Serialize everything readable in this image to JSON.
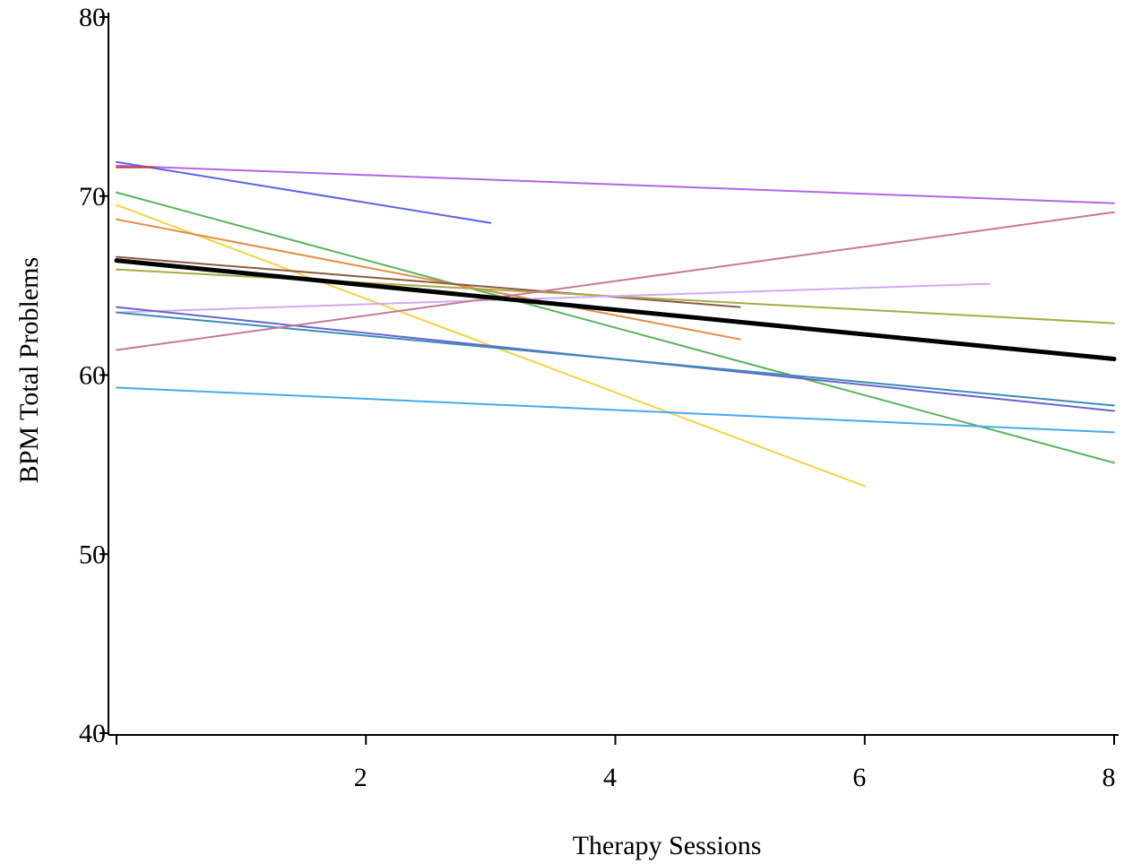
{
  "chart_data": {
    "type": "line",
    "xlabel": "Therapy Sessions",
    "ylabel": "BPM Total Problems",
    "xlim": [
      0,
      8
    ],
    "ylim": [
      40,
      80
    ],
    "xticks": [
      2,
      4,
      6,
      8
    ],
    "yticks": [
      40,
      50,
      60,
      70,
      80
    ],
    "grid": false,
    "series": [
      {
        "color": "#b464e6",
        "x": [
          0,
          8
        ],
        "y": [
          71.7,
          69.6
        ]
      },
      {
        "color": "#5a64e6",
        "x": [
          0,
          3
        ],
        "y": [
          71.9,
          68.5
        ]
      },
      {
        "color": "#d03a3a",
        "x": [
          0,
          0.3
        ],
        "y": [
          71.6,
          71.6
        ]
      },
      {
        "color": "#5ab45a",
        "x": [
          0,
          8
        ],
        "y": [
          70.2,
          55.1
        ]
      },
      {
        "color": "#f5d246",
        "x": [
          0,
          6
        ],
        "y": [
          69.5,
          53.8
        ]
      },
      {
        "color": "#e68c46",
        "x": [
          0,
          5
        ],
        "y": [
          68.7,
          62.0
        ]
      },
      {
        "color": "#8c5a46",
        "x": [
          0,
          5
        ],
        "y": [
          66.6,
          63.8
        ]
      },
      {
        "color": "#aaaa46",
        "x": [
          0,
          8
        ],
        "y": [
          65.9,
          62.9
        ]
      },
      {
        "color": "#d2aaf5",
        "x": [
          0,
          7
        ],
        "y": [
          63.5,
          65.1
        ]
      },
      {
        "color": "#6464d2",
        "x": [
          0,
          8
        ],
        "y": [
          63.8,
          58.0
        ]
      },
      {
        "color": "#3c8cb4",
        "x": [
          0,
          8
        ],
        "y": [
          63.5,
          58.3
        ]
      },
      {
        "color": "#c87896",
        "x": [
          0,
          8
        ],
        "y": [
          61.4,
          69.1
        ]
      },
      {
        "color": "#46aaeb",
        "x": [
          0,
          8
        ],
        "y": [
          59.3,
          56.8
        ]
      },
      {
        "color": "#000000",
        "x": [
          0,
          8
        ],
        "y": [
          66.4,
          60.9
        ],
        "bold": true
      }
    ]
  }
}
